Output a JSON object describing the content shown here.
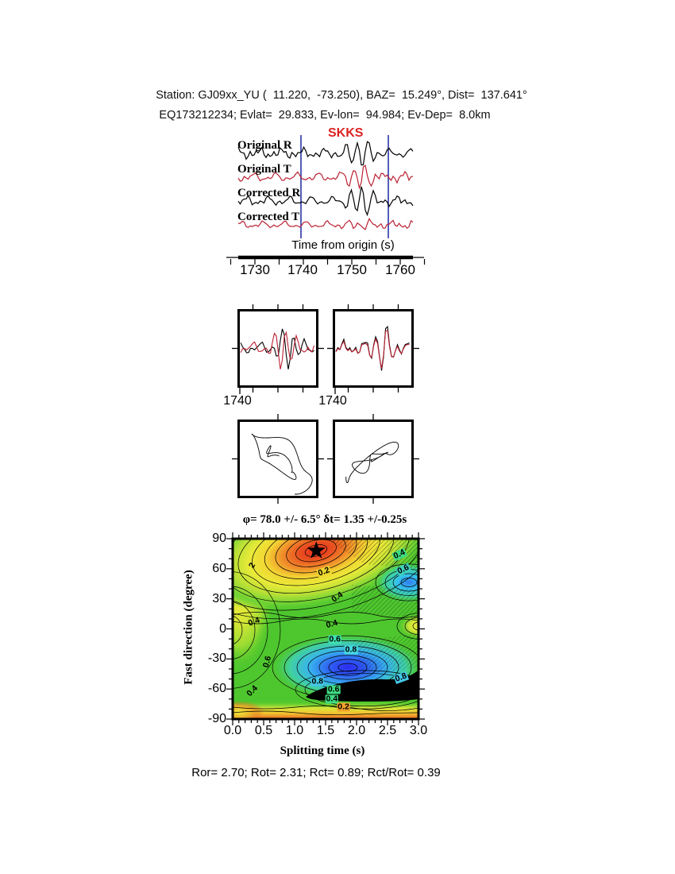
{
  "header": {
    "line1": "Station: GJ09xx_YU (  11.220,  -73.250), BAZ=  15.249°, Dist=  137.641°",
    "line2": "EQ173212234; Evlat=  29.833, Ev-lon=  94.984; Ev-Dep=  8.0km"
  },
  "seismogram": {
    "phase_label": "SKKS",
    "phase_label_color": "#dd2222",
    "trace_black_color": "#000000",
    "trace_red_color": "#bb2233",
    "window_line_color": "#2a35a8",
    "traces": [
      {
        "label": "Original R",
        "color": "#000000"
      },
      {
        "label": "Original T",
        "color": "#bb2233"
      },
      {
        "label": "Corrected R",
        "color": "#000000"
      },
      {
        "label": "Corrected T",
        "color": "#bb2233"
      }
    ],
    "axis_label": "Time from origin (s)",
    "ticks": [
      "1730",
      "1740",
      "1750",
      "1760"
    ],
    "window_start_s": 1740,
    "window_end_s": 1758
  },
  "window_panels": {
    "left_tick": "1740",
    "right_tick": "1740"
  },
  "result_line": "φ= 78.0 +/- 6.5° δt= 1.35 +/-0.25s",
  "footer": "Ror= 2.70; Rot= 2.31; Rct= 0.89; Rct/Rot= 0.39",
  "chart_data": [
    {
      "type": "heatmap",
      "subtype": "contour-error-surface",
      "title": "φ= 78.0 +/- 6.5° δt= 1.35 +/-0.25s",
      "xlabel": "Splitting time (s)",
      "ylabel": "Fast direction (degree)",
      "xlim": [
        0.0,
        3.0
      ],
      "ylim": [
        -90,
        90
      ],
      "xticks": [
        "0.0",
        "0.5",
        "1.0",
        "1.5",
        "2.0",
        "2.5",
        "3.0"
      ],
      "yticks": [
        "90",
        "60",
        "30",
        "0",
        "-30",
        "-60",
        "-90"
      ],
      "grid": false,
      "best_fit": {
        "marker": "star",
        "splitting_time_s": 1.35,
        "splitting_time_err_s": 0.25,
        "fast_direction_deg": 78.0,
        "fast_direction_err_deg": 6.5
      },
      "contour_labels": [
        {
          "value": "2",
          "x": 0.32,
          "y": 63,
          "bg": null,
          "rot": -60
        },
        {
          "value": "0.2",
          "x": 1.47,
          "y": 57,
          "bg": "#edd82f",
          "rot": -20
        },
        {
          "value": "0.4",
          "x": 1.69,
          "y": 31,
          "bg": null,
          "rot": -35
        },
        {
          "value": "0.4",
          "x": 2.69,
          "y": 74,
          "bg": "#3fdc82",
          "rot": -25
        },
        {
          "value": "0.6",
          "x": 2.76,
          "y": 59,
          "bg": "#3fd0c0",
          "rot": -25
        },
        {
          "value": "0.4",
          "x": 0.35,
          "y": 7,
          "bg": null,
          "rot": -20
        },
        {
          "value": "0.4",
          "x": 1.6,
          "y": 4,
          "bg": null,
          "rot": -15
        },
        {
          "value": "0.6",
          "x": 1.65,
          "y": -11,
          "bg": "#3fe0b0",
          "rot": 0
        },
        {
          "value": "0.8",
          "x": 1.91,
          "y": -21,
          "bg": "#45d8e0",
          "rot": 0
        },
        {
          "value": "0.6",
          "x": 0.56,
          "y": -33,
          "bg": null,
          "rot": -75
        },
        {
          "value": "0.8",
          "x": 2.72,
          "y": -49,
          "bg": "#45c8e8",
          "rot": -20
        },
        {
          "value": "0.8",
          "x": 1.37,
          "y": -53,
          "bg": "#45c8e8",
          "rot": 0
        },
        {
          "value": "0.6",
          "x": 1.63,
          "y": -61,
          "bg": "#3fdc82",
          "rot": 0
        },
        {
          "value": "0.4",
          "x": 1.6,
          "y": -70,
          "bg": "#3fdc82",
          "rot": 0
        },
        {
          "value": "0.2",
          "x": 1.79,
          "y": -78,
          "bg": "#f2a12c",
          "rot": 0
        },
        {
          "value": "0.4",
          "x": 0.32,
          "y": -62,
          "bg": null,
          "rot": -45
        }
      ],
      "colormap_note": "red maximum centered on star at (1.35s, 78°); deep blue minimum near (1.85s, -42°); solid black region near (2.2s, -65°); cyan-blue low at right edge near 45°; yellow patch at right edge near 0°; orange/yellow band along bottom edge"
    },
    {
      "type": "line",
      "subtype": "seismogram-traces",
      "title": "SKKS",
      "xlabel": "Time from origin (s)",
      "xlim": [
        1725,
        1765
      ],
      "xticks": [
        "1730",
        "1740",
        "1750",
        "1760"
      ],
      "series": [
        {
          "name": "Original R",
          "color": "#000000"
        },
        {
          "name": "Original T",
          "color": "#bb2233"
        },
        {
          "name": "Corrected R",
          "color": "#000000"
        },
        {
          "name": "Corrected T",
          "color": "#bb2233"
        }
      ],
      "pick_window_s": [
        1740,
        1758
      ],
      "window_panel_start_label": "1740"
    }
  ]
}
